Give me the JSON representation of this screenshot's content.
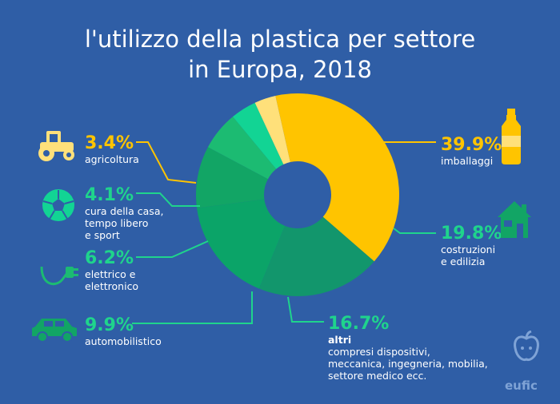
{
  "title_lines": [
    "l'utilizzo della plastica per settore",
    "in Europa, 2018"
  ],
  "logo": "eufic",
  "colors": {
    "background": "#2f5ea6",
    "imballaggi": "#ffc400",
    "costruzioni": "#12966c",
    "altri": "#0ba468",
    "automobilistico": "#12a565",
    "elettrico": "#1cbb72",
    "cura": "#12d494",
    "agricoltura": "#ffe07a",
    "yellow_text": "#ffc400",
    "green_text": "#1fd48c"
  },
  "chart_data": {
    "type": "pie",
    "donut": true,
    "title": "l'utilizzo della plastica per settore in Europa, 2018",
    "unit": "%",
    "slices": [
      {
        "key": "imballaggi",
        "value": 39.9,
        "label": "39.9%",
        "name": [
          "imballaggi"
        ],
        "icon": "bottle-icon"
      },
      {
        "key": "costruzioni",
        "value": 19.8,
        "label": "19.8%",
        "name": [
          "costruzioni",
          "e edilizia"
        ],
        "icon": "house-icon"
      },
      {
        "key": "altri",
        "value": 16.7,
        "label": "16.7%",
        "name": [
          "altri",
          "compresi dispositivi,",
          "meccanica, ingegneria, mobilia,",
          "settore medico ecc."
        ],
        "icon": ""
      },
      {
        "key": "automobilistico",
        "value": 9.9,
        "label": "9.9%",
        "name": [
          "automobilistico"
        ],
        "icon": "car-icon"
      },
      {
        "key": "elettrico",
        "value": 6.2,
        "label": "6.2%",
        "name": [
          "elettrico e",
          "elettronico"
        ],
        "icon": "plug-icon"
      },
      {
        "key": "cura",
        "value": 4.1,
        "label": "4.1%",
        "name": [
          "cura della casa,",
          "tempo libero",
          "e sport"
        ],
        "icon": "ball-icon"
      },
      {
        "key": "agricoltura",
        "value": 3.4,
        "label": "3.4%",
        "name": [
          "agricoltura"
        ],
        "icon": "tractor-icon"
      }
    ]
  }
}
